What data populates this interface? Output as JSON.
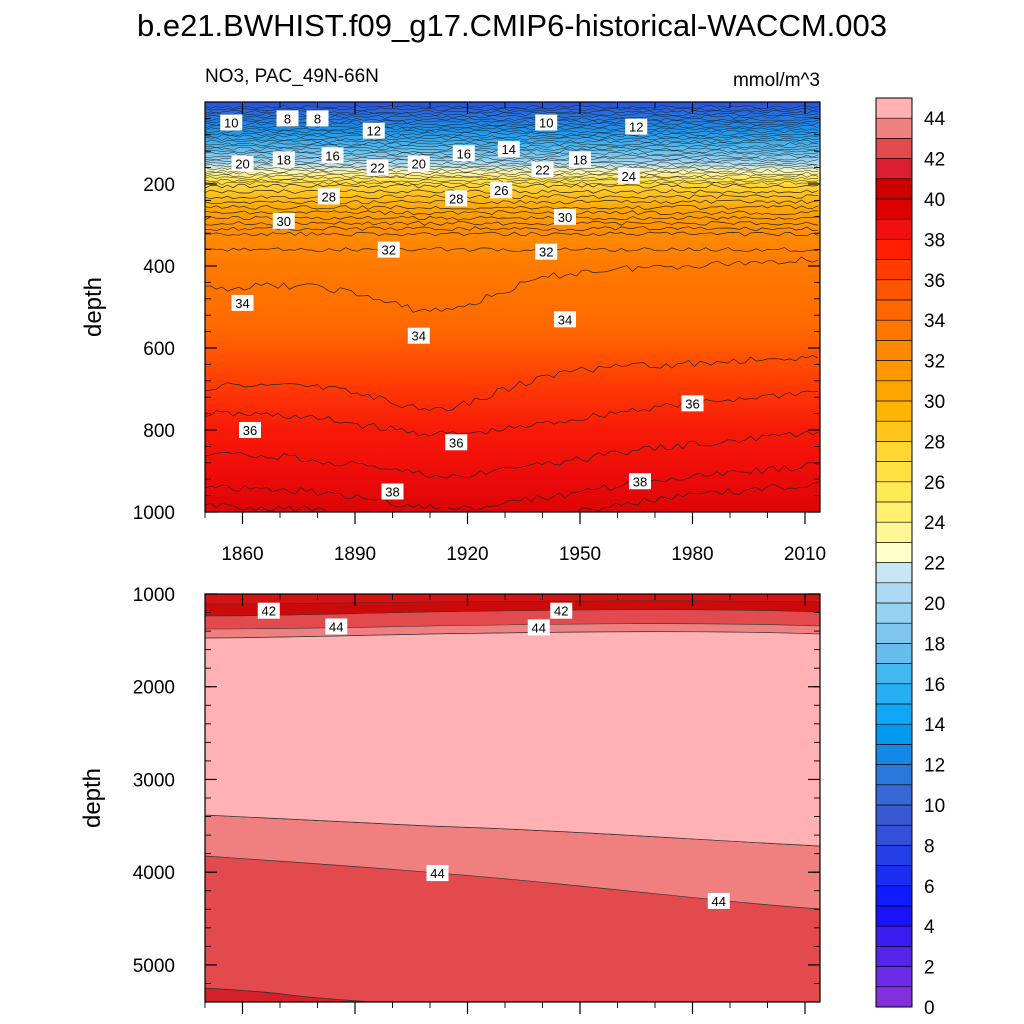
{
  "title": "b.e21.BWHIST.f09_g17.CMIP6-historical-WACCM.003",
  "chart_data": [
    {
      "type": "heatmap",
      "subtitle_left": "NO3, PAC_49N-66N",
      "subtitle_right": "mmol/m^3",
      "ylabel": "depth",
      "xlabel": "",
      "xlim": [
        1850,
        2014
      ],
      "ylim": [
        0,
        1000
      ],
      "y_inverted": true,
      "xticks": [
        1860,
        1890,
        1920,
        1950,
        1980,
        2010
      ],
      "xtick_labels": [
        "1860",
        "1890",
        "1920",
        "1950",
        "1980",
        "2010"
      ],
      "yticks": [
        200,
        400,
        600,
        800,
        1000
      ],
      "ytick_labels": [
        "200",
        "400",
        "600",
        "800",
        "1000"
      ],
      "contour_labels": [
        {
          "x": 1857,
          "y": 50,
          "text": "10"
        },
        {
          "x": 1872,
          "y": 40,
          "text": "8"
        },
        {
          "x": 1880,
          "y": 40,
          "text": "8"
        },
        {
          "x": 1895,
          "y": 70,
          "text": "12"
        },
        {
          "x": 1941,
          "y": 50,
          "text": "10"
        },
        {
          "x": 1965,
          "y": 60,
          "text": "12"
        },
        {
          "x": 1860,
          "y": 150,
          "text": "20"
        },
        {
          "x": 1871,
          "y": 140,
          "text": "18"
        },
        {
          "x": 1884,
          "y": 130,
          "text": "16"
        },
        {
          "x": 1896,
          "y": 160,
          "text": "22"
        },
        {
          "x": 1907,
          "y": 150,
          "text": "20"
        },
        {
          "x": 1919,
          "y": 125,
          "text": "16"
        },
        {
          "x": 1931,
          "y": 115,
          "text": "14"
        },
        {
          "x": 1940,
          "y": 165,
          "text": "22"
        },
        {
          "x": 1950,
          "y": 140,
          "text": "18"
        },
        {
          "x": 1963,
          "y": 180,
          "text": "24"
        },
        {
          "x": 1883,
          "y": 230,
          "text": "28"
        },
        {
          "x": 1917,
          "y": 235,
          "text": "28"
        },
        {
          "x": 1929,
          "y": 215,
          "text": "26"
        },
        {
          "x": 1871,
          "y": 290,
          "text": "30"
        },
        {
          "x": 1946,
          "y": 280,
          "text": "30"
        },
        {
          "x": 1899,
          "y": 360,
          "text": "32"
        },
        {
          "x": 1941,
          "y": 365,
          "text": "32"
        },
        {
          "x": 1860,
          "y": 490,
          "text": "34"
        },
        {
          "x": 1907,
          "y": 570,
          "text": "34"
        },
        {
          "x": 1946,
          "y": 530,
          "text": "34"
        },
        {
          "x": 1862,
          "y": 800,
          "text": "36"
        },
        {
          "x": 1917,
          "y": 830,
          "text": "36"
        },
        {
          "x": 1980,
          "y": 735,
          "text": "36"
        },
        {
          "x": 1900,
          "y": 950,
          "text": "38"
        },
        {
          "x": 1966,
          "y": 925,
          "text": "38"
        }
      ]
    },
    {
      "type": "heatmap",
      "ylabel": "depth",
      "xlabel": "",
      "xlim": [
        1850,
        2014
      ],
      "ylim": [
        1000,
        5400
      ],
      "y_inverted": true,
      "xticks": [
        1860,
        1890,
        1920,
        1950,
        1980,
        2010
      ],
      "yticks": [
        1000,
        2000,
        3000,
        4000,
        5000
      ],
      "ytick_labels": [
        "1000",
        "2000",
        "3000",
        "4000",
        "5000"
      ],
      "contour_labels": [
        {
          "x": 1867,
          "y": 1180,
          "text": "42"
        },
        {
          "x": 1945,
          "y": 1180,
          "text": "42"
        },
        {
          "x": 1885,
          "y": 1350,
          "text": "44"
        },
        {
          "x": 1939,
          "y": 1360,
          "text": "44"
        },
        {
          "x": 1912,
          "y": 4010,
          "text": "44"
        },
        {
          "x": 1987,
          "y": 4310,
          "text": "44"
        }
      ]
    }
  ],
  "colorbar": {
    "label_values": [
      "44",
      "42",
      "40",
      "38",
      "36",
      "34",
      "32",
      "30",
      "28",
      "26",
      "24",
      "22",
      "20",
      "18",
      "16",
      "14",
      "12",
      "10",
      "8",
      "6",
      "4",
      "2",
      "0"
    ],
    "colors_top_to_bottom": [
      "#FFB1B3",
      "#F18080",
      "#E24A4E",
      "#DA2030",
      "#CC0000",
      "#DD0000",
      "#F01010",
      "#FF1F00",
      "#FF3C00",
      "#FF5500",
      "#FF6600",
      "#FF7700",
      "#FF8800",
      "#FF9600",
      "#FFA500",
      "#FFB400",
      "#FFC51A",
      "#FFD633",
      "#FFE040",
      "#FFEA55",
      "#FFF070",
      "#FFF695",
      "#FFFFC8",
      "#C6E6F4",
      "#ABDAF2",
      "#95D1F0",
      "#7FC7EE",
      "#67BEEC",
      "#45B7EF",
      "#27AFF3",
      "#10A8F6",
      "#0099F2",
      "#1388E6",
      "#2A78DC",
      "#3668D6",
      "#3A58D2",
      "#3350D8",
      "#2240E6",
      "#1A2EF3",
      "#0E1CFF",
      "#1A12F8",
      "#3A1CF0",
      "#5424EA",
      "#6C2BE4",
      "#8530E0"
    ]
  }
}
